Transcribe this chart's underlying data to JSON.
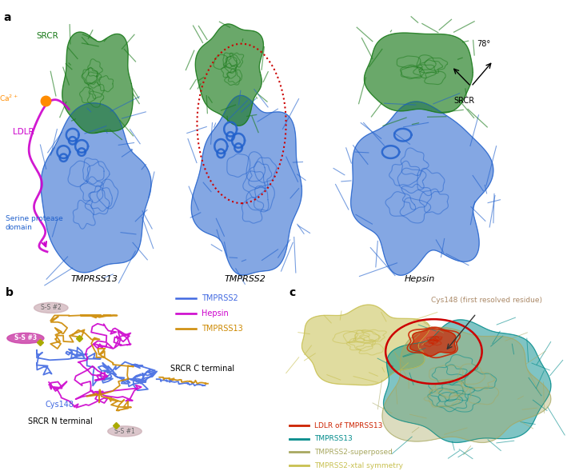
{
  "figure_background": "#FFFFFF",
  "panel_titles": [
    "TMPRSS13",
    "TMPRSS2",
    "Hepsin"
  ],
  "panel_a_colors": {
    "SRCR_green": "#1A7A1A",
    "serine_blue": "#2060CC",
    "LDLR_magenta": "#CC00CC",
    "Ca_orange": "#FF8C00"
  },
  "panel_b_legend": {
    "TMPRSS2": "#4169E1",
    "Hepsin": "#CC00CC",
    "TMPRSS13": "#CC8800"
  },
  "panel_c_legend_colors": {
    "LDLR of TMPRSS13": "#CC2200",
    "TMPRSS13": "#008B8B",
    "TMPRSS2-superposed": "#A8A860",
    "TMPRSS2-xtal symmetry": "#C8C050"
  },
  "dot_circle_color": "#CC0000",
  "ss2_color": "#C8A8B0",
  "ss3_color": "#CC44AA",
  "ss1_color": "#C8A8B0",
  "cys148_color": "#4169E1",
  "srcr_label_color": "#1A7A1A",
  "ldlr_label_color": "#CC00CC",
  "ca_label_color": "#CC8800",
  "sp_label_color": "#4169E1",
  "cys148_annot_color": "#AA8866"
}
